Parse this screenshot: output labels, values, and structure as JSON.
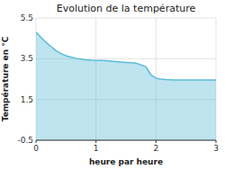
{
  "chart_data": {
    "type": "area",
    "title": "Evolution de la température",
    "xlabel": "heure par heure",
    "ylabel": "Température en °C",
    "x": [
      0,
      0.083,
      0.167,
      0.25,
      0.333,
      0.417,
      0.5,
      0.583,
      0.667,
      0.75,
      0.833,
      0.917,
      1.0,
      1.083,
      1.167,
      1.25,
      1.333,
      1.417,
      1.5,
      1.583,
      1.667,
      1.75,
      1.833,
      1.917,
      2.0,
      2.083,
      2.167,
      2.25,
      2.333,
      2.417,
      2.5,
      2.583,
      2.667,
      2.75,
      2.833,
      2.917,
      3.0
    ],
    "values": [
      4.8,
      4.55,
      4.3,
      4.1,
      3.9,
      3.75,
      3.65,
      3.58,
      3.52,
      3.48,
      3.45,
      3.43,
      3.42,
      3.41,
      3.4,
      3.38,
      3.36,
      3.34,
      3.32,
      3.3,
      3.28,
      3.2,
      3.1,
      2.7,
      2.55,
      2.5,
      2.48,
      2.47,
      2.46,
      2.46,
      2.46,
      2.46,
      2.46,
      2.46,
      2.46,
      2.46,
      2.46
    ],
    "color": "#5bbcd8",
    "xlim": [
      0,
      3
    ],
    "ylim": [
      -0.5,
      5.5
    ],
    "xticks": [
      0,
      1,
      2,
      3
    ],
    "yticks": [
      -0.5,
      1.5,
      3.5,
      5.5
    ],
    "grid": true
  }
}
